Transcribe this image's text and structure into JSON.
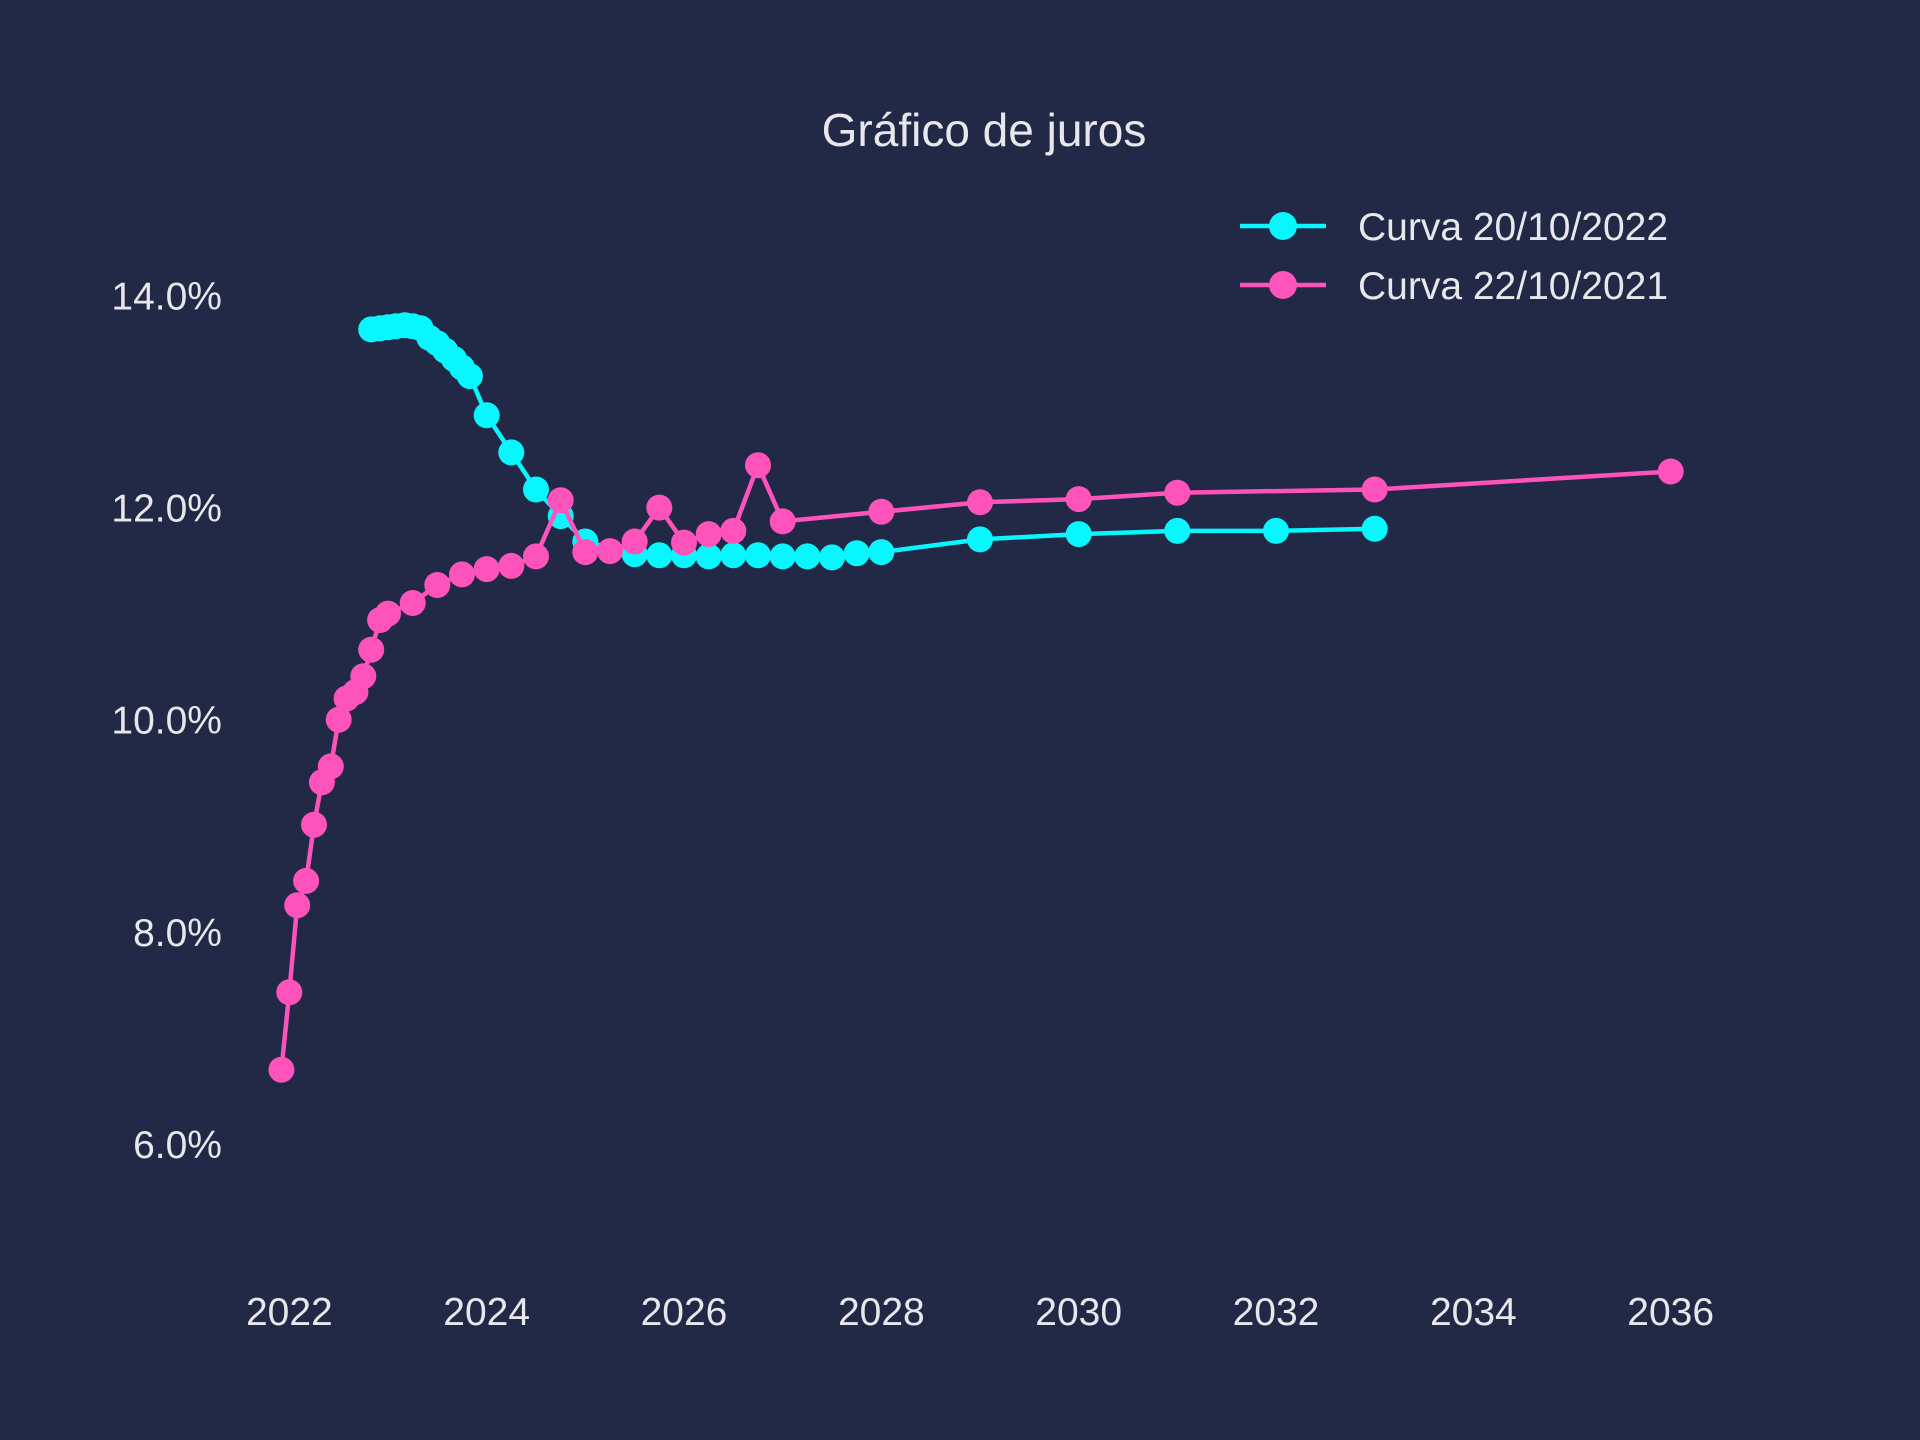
{
  "chart_data": {
    "type": "line",
    "title": "Gráfico de juros",
    "xlabel": "",
    "ylabel": "",
    "xlim": [
      2021.5,
      2036.5
    ],
    "ylim": [
      5.0,
      14.9
    ],
    "xticks": [
      2022,
      2024,
      2026,
      2028,
      2030,
      2032,
      2034,
      2036
    ],
    "xtick_labels": [
      "2022",
      "2024",
      "2026",
      "2028",
      "2030",
      "2032",
      "2034",
      "2036"
    ],
    "yticks": [
      6,
      8,
      10,
      12,
      14
    ],
    "ytick_labels": [
      "6.0%",
      "8.0%",
      "10.0%",
      "12.0%",
      "14.0%"
    ],
    "grid": false,
    "legend_position": "top-right",
    "series": [
      {
        "name": "Curva 20/10/2022",
        "color": "#08f7fe",
        "x": [
          2022.83,
          2022.92,
          2023.0,
          2023.08,
          2023.17,
          2023.25,
          2023.33,
          2023.42,
          2023.5,
          2023.58,
          2023.67,
          2023.75,
          2023.83,
          2024.0,
          2024.25,
          2024.5,
          2024.75,
          2025.0,
          2025.5,
          2025.75,
          2026.0,
          2026.25,
          2026.5,
          2026.75,
          2027.0,
          2027.25,
          2027.5,
          2027.75,
          2028.0,
          2029.0,
          2030.0,
          2031.0,
          2032.0,
          2033.0
        ],
        "values": [
          13.68,
          13.69,
          13.7,
          13.71,
          13.72,
          13.71,
          13.69,
          13.6,
          13.55,
          13.48,
          13.4,
          13.32,
          13.24,
          12.87,
          12.52,
          12.17,
          11.92,
          11.68,
          11.56,
          11.55,
          11.55,
          11.54,
          11.55,
          11.55,
          11.54,
          11.54,
          11.53,
          11.57,
          11.58,
          11.7,
          11.75,
          11.78,
          11.78,
          11.8
        ]
      },
      {
        "name": "Curva 22/10/2021",
        "color": "#fe53bb",
        "x": [
          2021.92,
          2022.0,
          2022.08,
          2022.17,
          2022.25,
          2022.33,
          2022.42,
          2022.5,
          2022.58,
          2022.67,
          2022.75,
          2022.83,
          2022.92,
          2023.0,
          2023.25,
          2023.5,
          2023.75,
          2024.0,
          2024.25,
          2024.5,
          2024.75,
          2025.0,
          2025.25,
          2025.5,
          2025.75,
          2026.0,
          2026.25,
          2026.5,
          2026.75,
          2027.0,
          2028.0,
          2029.0,
          2030.0,
          2031.0,
          2033.0,
          2036.0
        ],
        "values": [
          6.7,
          7.43,
          8.25,
          8.48,
          9.01,
          9.41,
          9.56,
          10.0,
          10.2,
          10.26,
          10.41,
          10.66,
          10.94,
          11.0,
          11.1,
          11.27,
          11.37,
          11.42,
          11.45,
          11.54,
          12.07,
          11.58,
          11.59,
          11.68,
          12.0,
          11.67,
          11.75,
          11.78,
          12.4,
          11.87,
          11.96,
          12.05,
          12.08,
          12.14,
          12.17,
          12.34
        ]
      }
    ]
  }
}
